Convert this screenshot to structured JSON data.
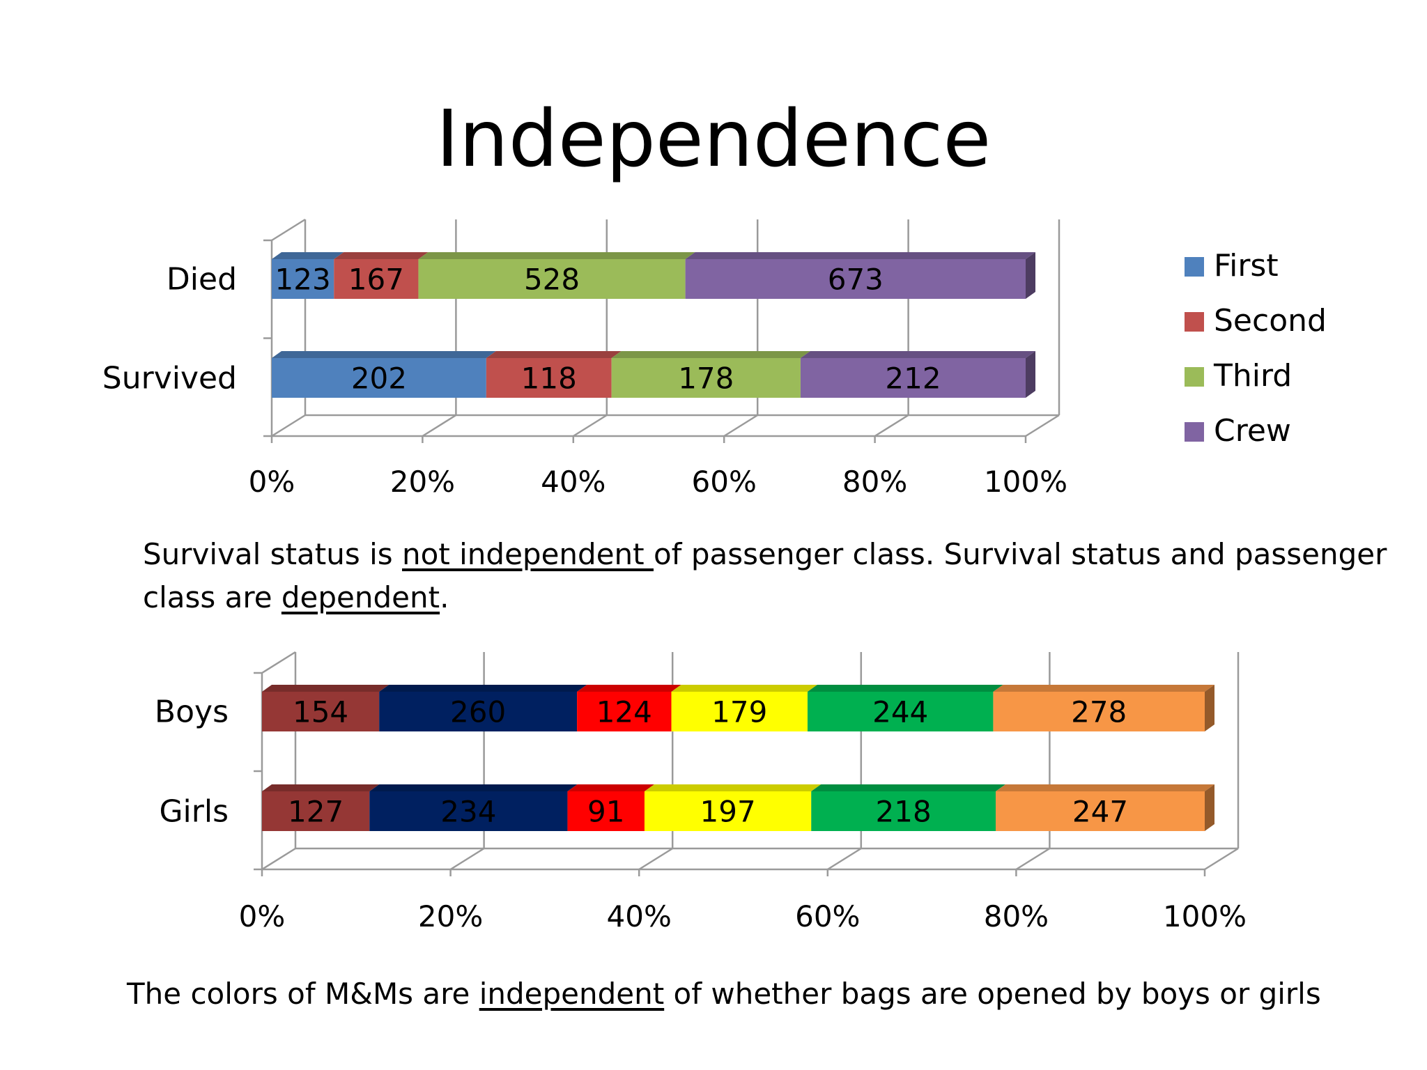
{
  "slide": {
    "title": "Independence"
  },
  "caption1": {
    "part1": "Survival status is ",
    "underline1": "not independent ",
    "part2": "of passenger class.  Survival status and passenger class are ",
    "underline2": "dependent",
    "part3": "."
  },
  "caption2": {
    "part1": "The colors of M&Ms are ",
    "underline1": "independent",
    "part2": " of whether bags are opened by boys or girls"
  },
  "chart_data": [
    {
      "type": "bar",
      "orientation": "horizontal",
      "stacked": "percent",
      "three_d": true,
      "categories": [
        "Died",
        "Survived"
      ],
      "series": [
        {
          "name": "First",
          "color": "#4f81bd",
          "values": [
            123,
            202
          ]
        },
        {
          "name": "Second",
          "color": "#c0504d",
          "values": [
            167,
            118
          ]
        },
        {
          "name": "Third",
          "color": "#9bbb59",
          "values": [
            528,
            178
          ]
        },
        {
          "name": "Crew",
          "color": "#8064a2",
          "values": [
            673,
            212
          ]
        }
      ],
      "xlim": [
        0,
        100
      ],
      "x_ticks": [
        "0%",
        "20%",
        "40%",
        "60%",
        "80%",
        "100%"
      ],
      "grid": true,
      "legend": "right"
    },
    {
      "type": "bar",
      "orientation": "horizontal",
      "stacked": "percent",
      "three_d": true,
      "categories": [
        "Boys",
        "Girls"
      ],
      "series": [
        {
          "color": "#953735",
          "values": [
            154,
            127
          ]
        },
        {
          "color": "#002060",
          "values": [
            260,
            234
          ]
        },
        {
          "color": "#ff0000",
          "values": [
            124,
            91
          ]
        },
        {
          "color": "#ffff00",
          "values": [
            179,
            197
          ]
        },
        {
          "color": "#00b050",
          "values": [
            244,
            218
          ]
        },
        {
          "color": "#f79646",
          "values": [
            278,
            247
          ]
        }
      ],
      "xlim": [
        0,
        100
      ],
      "x_ticks": [
        "0%",
        "20%",
        "40%",
        "60%",
        "80%",
        "100%"
      ],
      "grid": true,
      "legend": "none"
    }
  ]
}
